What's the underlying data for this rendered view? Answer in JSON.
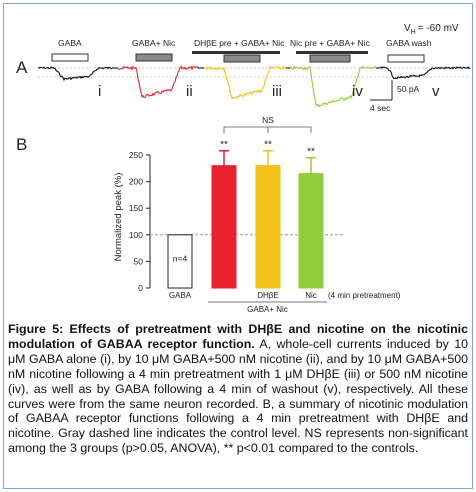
{
  "panel_a": {
    "letter": "A",
    "vh_label": "V",
    "vh_sub": "H",
    "vh_value": "= -60 mV",
    "segments": [
      {
        "label": "GABA",
        "roman": "i",
        "color": "#111111"
      },
      {
        "label": "GABA+ Nic",
        "roman": "ii",
        "color": "#e8212e"
      },
      {
        "label": "DHβE pre + GABA+ Nic",
        "roman": "iii",
        "color": "#f2c21a"
      },
      {
        "label": "Nic pre + GABA+ Nic",
        "roman": "iv",
        "color": "#8fce3a"
      },
      {
        "label": "GABA wash",
        "roman": "v",
        "color": "#111111"
      }
    ],
    "scale_current": "50 pA",
    "scale_time": "4 sec"
  },
  "panel_b": {
    "letter": "B",
    "chart_data": {
      "type": "bar",
      "ylabel": "Normalized peak (%)",
      "ylim": [
        0,
        250
      ],
      "yticks": [
        "0",
        "50",
        "100",
        "150",
        "200",
        "250"
      ],
      "categories": [
        "GABA",
        "",
        "DHβE",
        "Nic"
      ],
      "values": [
        100,
        230,
        230,
        215
      ],
      "errors": [
        0,
        28,
        28,
        30
      ],
      "colors": [
        "#ffffff",
        "#e8212e",
        "#f2c21a",
        "#8fce3a"
      ],
      "sig_labels": [
        "",
        "**",
        "**",
        "**"
      ],
      "n_label": "n=4",
      "ns_label": "NS",
      "pretreatment_note": "(4 min pretreatment)",
      "group_label": "GABA+ Nic",
      "control_line": 100
    }
  },
  "caption": {
    "title": "Figure 5: Effects of pretreatment with DHβE and nicotine on the nicotinic modulation of GABAA receptor function.",
    "body": " A, whole-cell currents induced by 10 μM GABA alone (i), by 10 μM GABA+500 nM nicotine (ii), and by 10 μM GABA+500 nM nicotine following a 4 min pretreatment with 1 μM DHβE (iii) or 500 nM nicotine (iv), as well as by GABA following a 4 min of washout (v), respectively.  All these curves were from the same neuron recorded.  B, a summary of nicotinic modulation of GABAA receptor functions following a 4 min pretreatment with DHβE and nicotine.  Gray dashed line indicates the control level. NS represents non-significant among the 3 groups (p>0.05, ANOVA), ** p<0.01 compared to the controls."
  }
}
